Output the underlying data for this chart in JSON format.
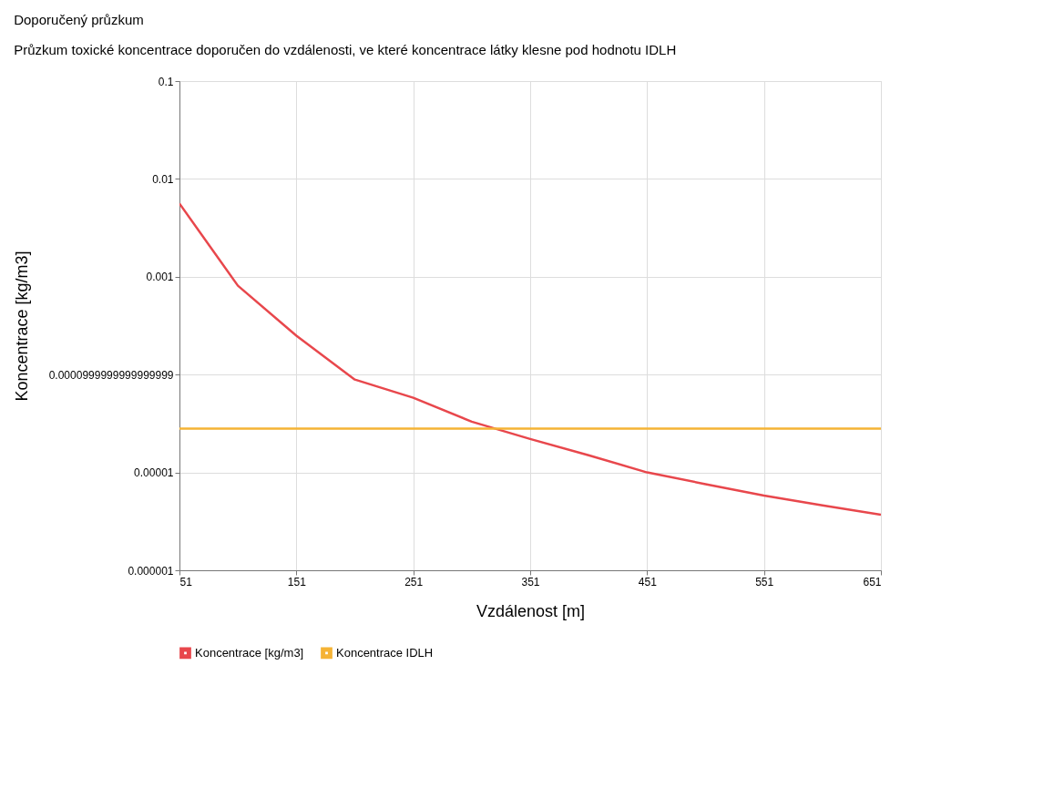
{
  "chart_data": {
    "type": "line",
    "title": "Doporučený průzkum",
    "subtitle": "Průzkum toxické koncentrace doporučen do vzdálenosti, ve které koncentrace látky klesne pod hodnotu IDLH",
    "xlabel": "Vzdálenost [m]",
    "ylabel": "Koncentrace [kg/m3]",
    "x": [
      51,
      101,
      151,
      201,
      251,
      301,
      351,
      401,
      451,
      501,
      551,
      601,
      651
    ],
    "series": [
      {
        "name": "Koncentrace [kg/m3]",
        "color": "#e8474c",
        "values": [
          0.0056,
          0.00081,
          0.00025,
          8.9e-05,
          5.8e-05,
          3.3e-05,
          2.2e-05,
          1.5e-05,
          1e-05,
          7.6e-06,
          5.8e-06,
          4.6e-06,
          3.7e-06
        ]
      },
      {
        "name": "Koncentrace IDLH",
        "color": "#f5b335",
        "values": [
          2.8e-05,
          2.8e-05,
          2.8e-05,
          2.8e-05,
          2.8e-05,
          2.8e-05,
          2.8e-05,
          2.8e-05,
          2.8e-05,
          2.8e-05,
          2.8e-05,
          2.8e-05,
          2.8e-05
        ]
      }
    ],
    "log": "y",
    "xlim": [
      51,
      651
    ],
    "xticks": [
      51,
      151,
      251,
      351,
      451,
      551,
      651
    ],
    "ylim": [
      1e-06,
      0.1
    ],
    "yticks": [
      0.1,
      0.01,
      0.001,
      {
        "value": 0.0001,
        "label": "0.0000999999999999999"
      },
      {
        "value": 1e-05,
        "label": "0.00001"
      },
      {
        "value": 1e-06,
        "label": "0.000001"
      }
    ],
    "grid": true,
    "legend": "bottom",
    "marker": "none",
    "line_style": "solid"
  }
}
